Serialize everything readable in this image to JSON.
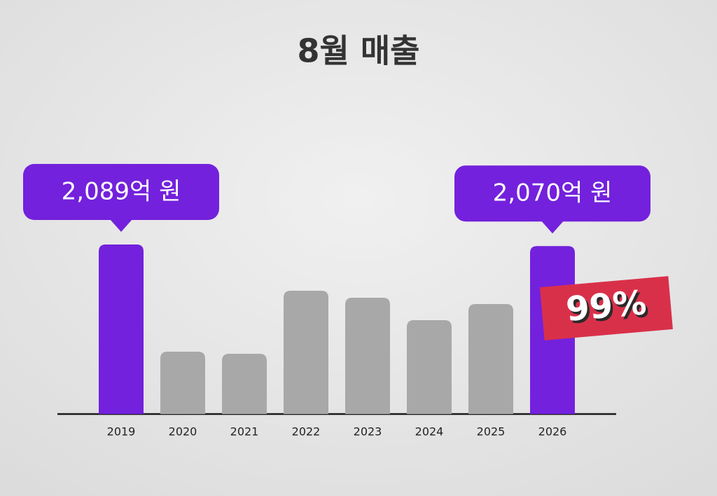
{
  "chart_data": {
    "type": "bar",
    "title": "8월 매출",
    "categories": [
      "2019",
      "2020",
      "2021",
      "2022",
      "2023",
      "2024",
      "2025",
      "2026"
    ],
    "values": [
      2089,
      768,
      742,
      1519,
      1433,
      1157,
      1355,
      2070
    ],
    "value_labels": [
      "2,089억 원",
      null,
      null,
      null,
      null,
      null,
      null,
      "2,070억 원"
    ],
    "colors": [
      "#7321dc",
      "#a8a8a8",
      "#a8a8a8",
      "#a8a8a8",
      "#a8a8a8",
      "#a8a8a8",
      "#a8a8a8",
      "#7321dc"
    ],
    "annotation": "99%",
    "annotation_color": "#d9304a"
  }
}
